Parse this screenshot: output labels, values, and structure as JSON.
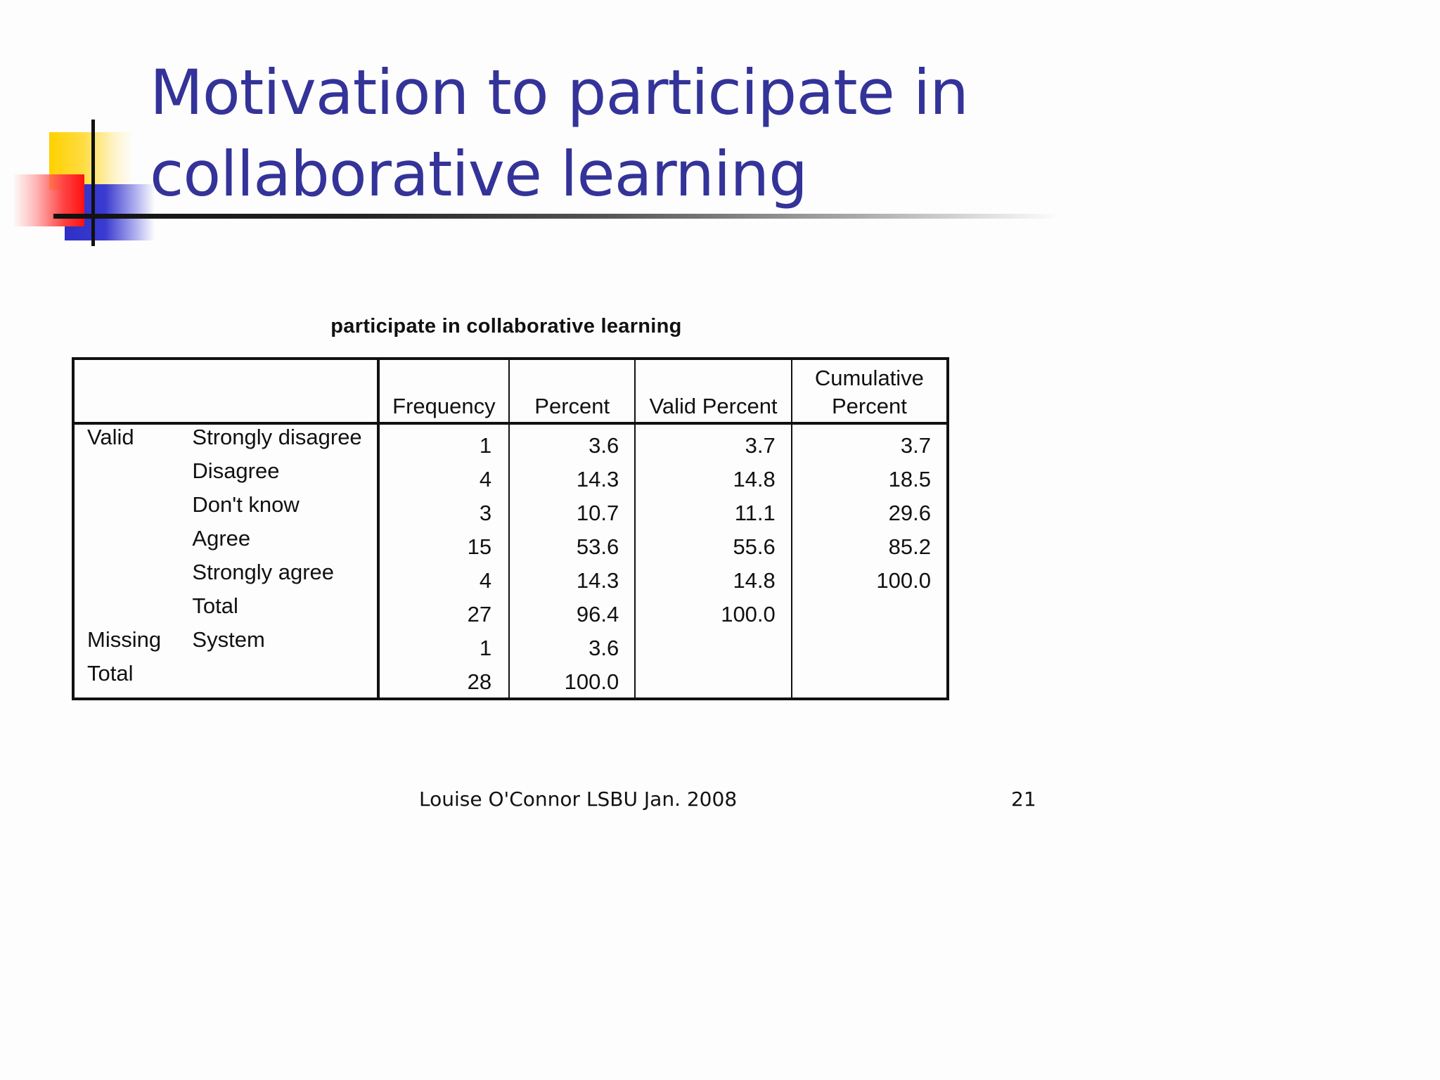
{
  "slide": {
    "title": "Motivation to participate in collaborative learning",
    "footer": "Louise O'Connor LSBU Jan. 2008",
    "page_number": "21"
  },
  "table": {
    "caption": "participate in collaborative learning",
    "headers": {
      "frequency": "Frequency",
      "percent": "Percent",
      "valid_percent": "Valid Percent",
      "cumulative_percent_line1": "Cumulative",
      "cumulative_percent_line2": "Percent"
    },
    "rows": [
      {
        "group": "Valid",
        "category": "Strongly disagree",
        "frequency": "1",
        "percent": "3.6",
        "valid_percent": "3.7",
        "cumulative_percent": "3.7"
      },
      {
        "group": "",
        "category": "Disagree",
        "frequency": "4",
        "percent": "14.3",
        "valid_percent": "14.8",
        "cumulative_percent": "18.5"
      },
      {
        "group": "",
        "category": "Don't know",
        "frequency": "3",
        "percent": "10.7",
        "valid_percent": "11.1",
        "cumulative_percent": "29.6"
      },
      {
        "group": "",
        "category": "Agree",
        "frequency": "15",
        "percent": "53.6",
        "valid_percent": "55.6",
        "cumulative_percent": "85.2"
      },
      {
        "group": "",
        "category": "Strongly agree",
        "frequency": "4",
        "percent": "14.3",
        "valid_percent": "14.8",
        "cumulative_percent": "100.0"
      },
      {
        "group": "",
        "category": "Total",
        "frequency": "27",
        "percent": "96.4",
        "valid_percent": "100.0",
        "cumulative_percent": ""
      },
      {
        "group": "Missing",
        "category": "System",
        "frequency": "1",
        "percent": "3.6",
        "valid_percent": "",
        "cumulative_percent": ""
      },
      {
        "group": "Total",
        "category": "",
        "frequency": "28",
        "percent": "100.0",
        "valid_percent": "",
        "cumulative_percent": ""
      }
    ]
  },
  "colors": {
    "title": "#333399",
    "accent_yellow": "#ffd000",
    "accent_blue": "#2e2fc4",
    "accent_red": "#ff1010"
  }
}
